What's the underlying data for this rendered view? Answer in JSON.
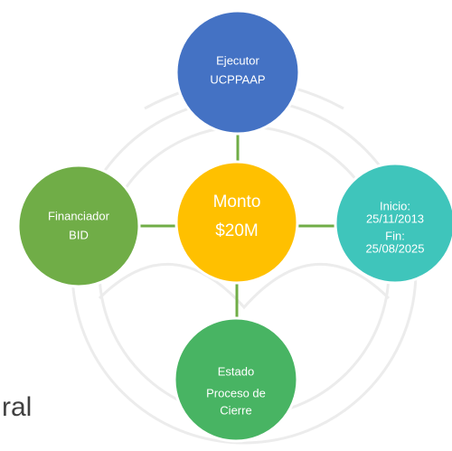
{
  "fragment": "ral",
  "center": {
    "lines": [
      "Monto",
      "$20M"
    ]
  },
  "nodes": [
    {
      "lines": [
        "Ejecutor",
        "UCPPAAP"
      ]
    },
    {
      "lines": [
        "Financiador",
        "BID"
      ]
    },
    {
      "lines": [
        "Inicio:",
        "25/11/2013",
        "Fin:",
        "25/08/2025"
      ]
    },
    {
      "lines": [
        "Estado",
        "Proceso de",
        "Cierre"
      ]
    }
  ]
}
